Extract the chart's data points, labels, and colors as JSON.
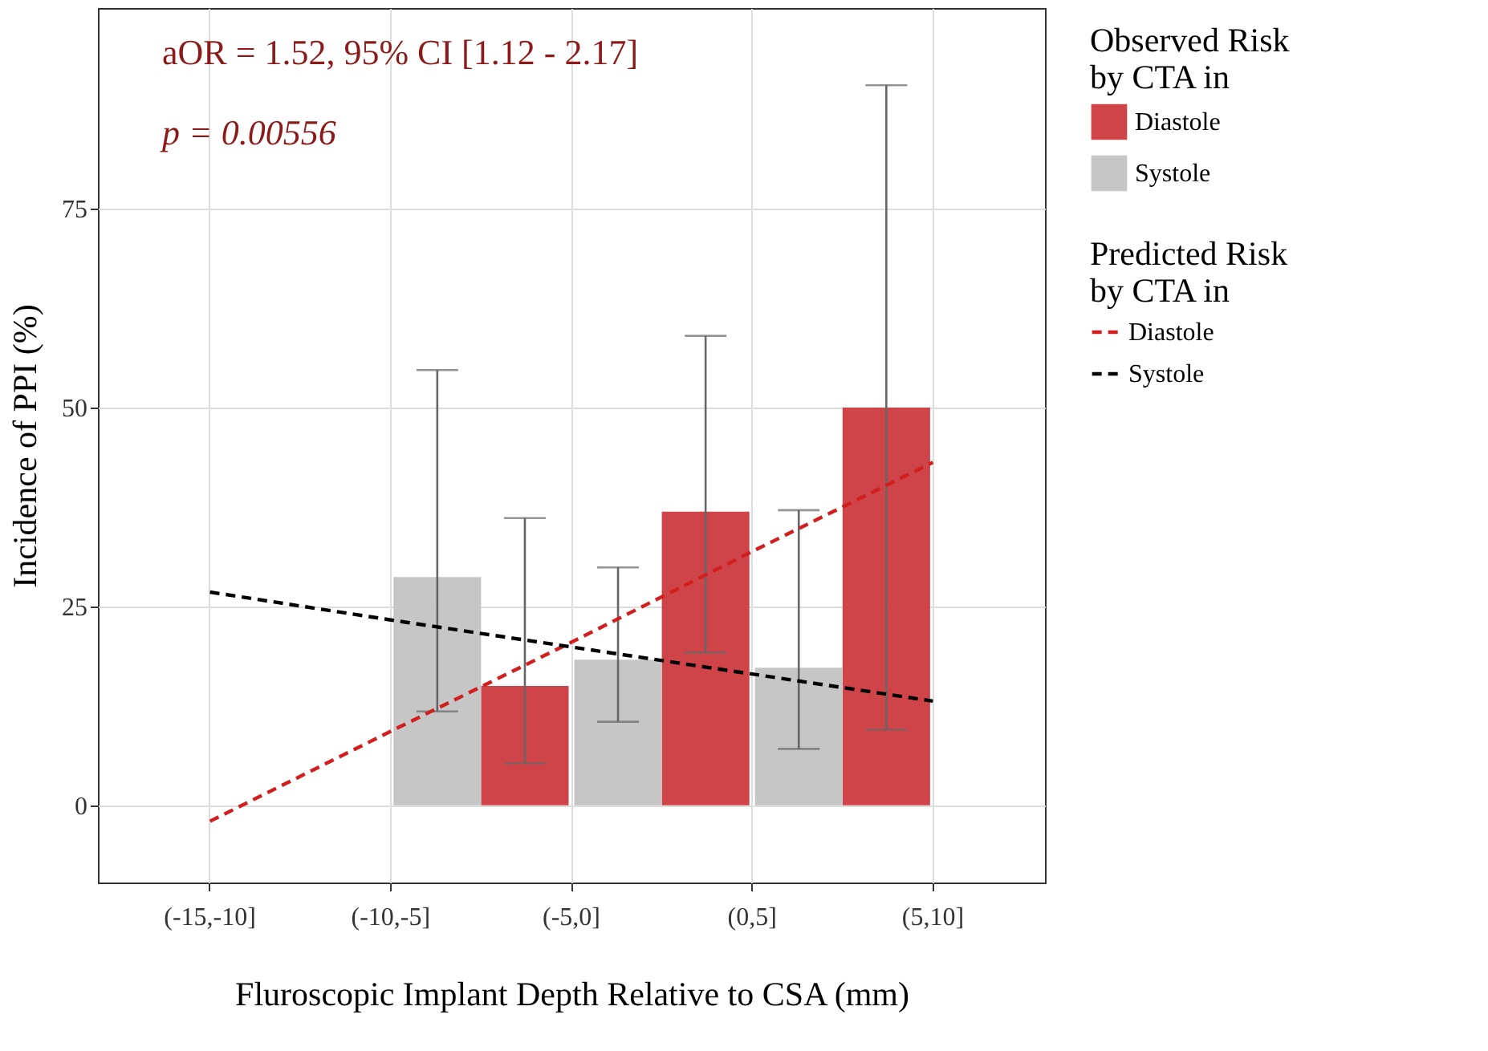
{
  "chart_data": {
    "type": "bar",
    "categories": [
      "(-15,-10]",
      "(-10,-5]",
      "(-5,0]",
      "(0,5]",
      "(5,10]"
    ],
    "xlabel": "Fluroscopic Implant Depth Relative to CSA (mm)",
    "ylabel": "Incidence of PPI (%)",
    "legend_title": [
      "Predicted Risk by CTA in",
      "Observed Risk by CTA in"
    ],
    "series": [
      {
        "name": "Diastole",
        "type": "line",
        "line_style": "dashed",
        "color": "#d11f1f",
        "values": [
          -2.0,
          9.3,
          20.5,
          31.9,
          43.1
        ]
      },
      {
        "name": "Systole",
        "type": "line",
        "line_style": "dashed",
        "color": "#000000",
        "values": [
          26.8,
          23.3,
          19.9,
          16.5,
          13.1
        ]
      },
      {
        "name": "Diastole",
        "color": "#cc3a3e",
        "values": [
          null,
          null,
          15.0,
          36.9,
          50.0
        ],
        "errors": [
          null,
          null,
          [
            5.3,
            36.1
          ],
          [
            19.2,
            59.0
          ],
          [
            9.5,
            90.5
          ]
        ]
      },
      {
        "name": "Systole",
        "color": "#c3c3c3",
        "values": [
          null,
          28.7,
          18.3,
          17.3,
          null
        ],
        "errors": [
          null,
          [
            11.8,
            54.7
          ],
          [
            10.5,
            29.9
          ],
          [
            7.1,
            37.1
          ],
          null
        ]
      }
    ],
    "annotations": [
      "aOR = 1.52, 95% CI [1.12 - 2.17]",
      "p = 0.00556"
    ],
    "ylim": [
      -9.7,
      100.2
    ],
    "yticks": [
      0,
      25,
      50,
      75
    ],
    "grid": true,
    "legend": "right"
  }
}
